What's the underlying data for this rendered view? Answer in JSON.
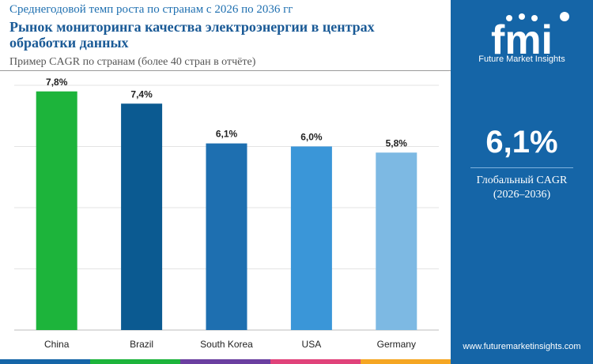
{
  "header": {
    "supertitle": "Среднегодовой темп роста по странам с 2026 по 2036 гг",
    "title": "Рынок мониторинга качества электроэнергии в центрах обработки данных",
    "subtitle": "Пример CAGR по странам (более 40 стран в отчёте)"
  },
  "chart_data": {
    "type": "bar",
    "categories": [
      "China",
      "Brazil",
      "South Korea",
      "USA",
      "Germany"
    ],
    "values": [
      7.8,
      7.4,
      6.1,
      6.0,
      5.8
    ],
    "value_labels": [
      "7,8%",
      "7,4%",
      "6,1%",
      "6,0%",
      "5,8%"
    ],
    "ylim": [
      0,
      8
    ],
    "grid": true,
    "colors": [
      "#1db43b",
      "#0b5a91",
      "#1e6fb0",
      "#3a96d8",
      "#7db9e3"
    ]
  },
  "sidebar": {
    "logo_text": "fmi",
    "logo_subtitle": "Future Market Insights",
    "global_value": "6,1%",
    "global_label": "Глобальный CAGR",
    "global_period": "(2026–2036)",
    "website": "www.futuremarketinsights.com"
  },
  "colors": {
    "sidebar_bg": "#1565a7",
    "title": "#1a5a96",
    "strip": [
      "#1565a7",
      "#1db43b",
      "#6b3fa0",
      "#e0427a",
      "#f5a623"
    ]
  }
}
